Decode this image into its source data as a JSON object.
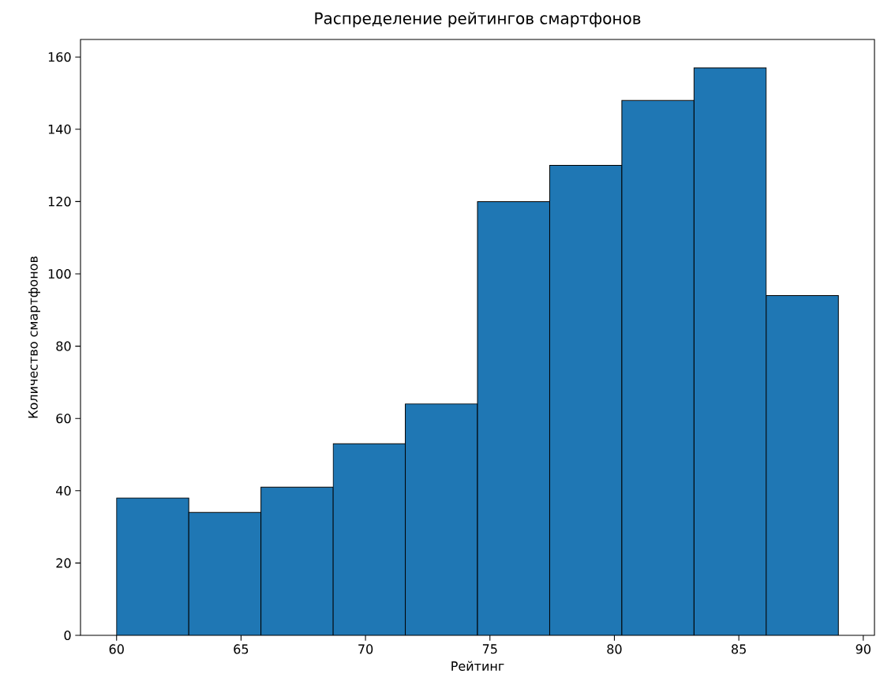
{
  "chart_data": {
    "type": "histogram",
    "title": "Распределение рейтингов смартфонов",
    "xlabel": "Рейтинг",
    "ylabel": "Количество смартфонов",
    "bins": [
      60,
      62.9,
      65.8,
      68.7,
      71.6,
      74.5,
      77.4,
      80.3,
      83.2,
      86.1,
      89
    ],
    "values": [
      38,
      34,
      41,
      53,
      64,
      120,
      130,
      148,
      157,
      94
    ],
    "color": "#1f77b4",
    "xlim": [
      58.55,
      90.45
    ],
    "ylim": [
      0,
      164.85
    ],
    "xticks": [
      60,
      65,
      70,
      75,
      80,
      85,
      90
    ],
    "yticks": [
      0,
      20,
      40,
      60,
      80,
      100,
      120,
      140,
      160
    ]
  }
}
